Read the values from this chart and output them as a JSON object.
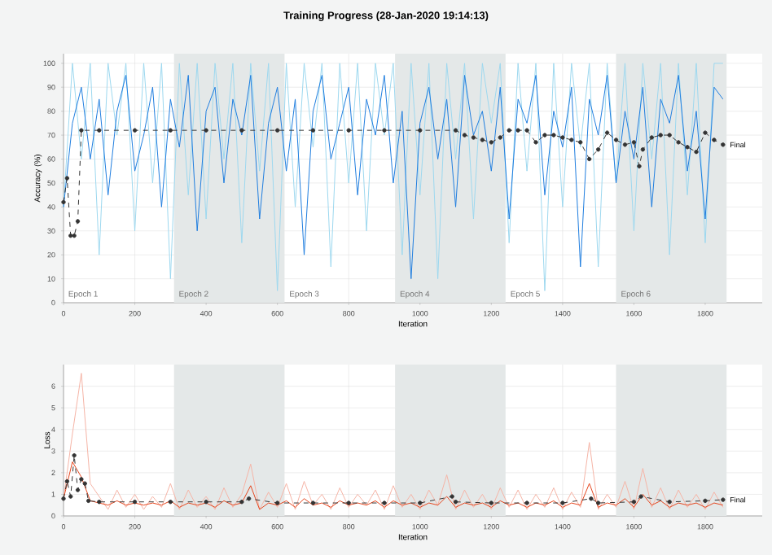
{
  "chart_data": [
    {
      "type": "line",
      "title": "Training Progress (28-Jan-2020 19:14:13)",
      "xlabel": "Iteration",
      "ylabel": "Accuracy (%)",
      "xlim": [
        0,
        1960
      ],
      "ylim": [
        0,
        104
      ],
      "xticks": [
        0,
        200,
        400,
        600,
        800,
        1000,
        1200,
        1400,
        1600,
        1800
      ],
      "yticks": [
        0,
        10,
        20,
        30,
        40,
        50,
        60,
        70,
        80,
        90,
        100
      ],
      "grid": true,
      "bands": [
        {
          "axis": "x",
          "from": 310,
          "to": 620,
          "color": "#e4e8e8"
        },
        {
          "axis": "x",
          "from": 930,
          "to": 1240,
          "color": "#e4e8e8"
        },
        {
          "axis": "x",
          "from": 1550,
          "to": 1860,
          "color": "#e4e8e8"
        }
      ],
      "annotations": [
        {
          "text": "Final",
          "x": 1850,
          "y": 66
        },
        "Epoch 1",
        "Epoch 2",
        "Epoch 3",
        "Epoch 4",
        "Epoch 5",
        "Epoch 6"
      ],
      "series": [
        {
          "color": "#9dd8ef",
          "x": [
            0,
            25,
            50,
            75,
            100,
            125,
            150,
            175,
            200,
            225,
            250,
            275,
            300,
            325,
            350,
            375,
            400,
            425,
            450,
            475,
            500,
            525,
            550,
            575,
            600,
            625,
            650,
            675,
            700,
            725,
            750,
            775,
            800,
            825,
            850,
            875,
            900,
            925,
            950,
            975,
            1000,
            1025,
            1050,
            1075,
            1100,
            1125,
            1150,
            1175,
            1200,
            1225,
            1250,
            1275,
            1300,
            1325,
            1350,
            1375,
            1400,
            1425,
            1450,
            1475,
            1500,
            1525,
            1550,
            1575,
            1600,
            1625,
            1650,
            1675,
            1700,
            1725,
            1750,
            1775,
            1800,
            1825,
            1850
          ],
          "values": [
            40,
            100,
            60,
            100,
            20,
            100,
            70,
            100,
            30,
            100,
            50,
            100,
            10,
            100,
            45,
            100,
            35,
            100,
            60,
            100,
            25,
            100,
            55,
            100,
            5,
            100,
            40,
            100,
            65,
            100,
            15,
            100,
            50,
            100,
            30,
            100,
            70,
            100,
            20,
            100,
            45,
            100,
            10,
            100,
            60,
            100,
            35,
            100,
            75,
            100,
            25,
            100,
            55,
            100,
            5,
            100,
            40,
            100,
            65,
            100,
            15,
            100,
            50,
            100,
            30,
            100,
            60,
            100,
            20,
            100,
            45,
            100,
            25,
            100,
            100
          ]
        },
        {
          "color": "#1f7ddf",
          "x": [
            0,
            25,
            50,
            75,
            100,
            125,
            150,
            175,
            200,
            225,
            250,
            275,
            300,
            325,
            350,
            375,
            400,
            425,
            450,
            475,
            500,
            525,
            550,
            575,
            600,
            625,
            650,
            675,
            700,
            725,
            750,
            775,
            800,
            825,
            850,
            875,
            900,
            925,
            950,
            975,
            1000,
            1025,
            1050,
            1075,
            1100,
            1125,
            1150,
            1175,
            1200,
            1225,
            1250,
            1275,
            1300,
            1325,
            1350,
            1375,
            1400,
            1425,
            1450,
            1475,
            1500,
            1525,
            1550,
            1575,
            1600,
            1625,
            1650,
            1675,
            1700,
            1725,
            1750,
            1775,
            1800,
            1825,
            1850
          ],
          "values": [
            40,
            75,
            90,
            60,
            85,
            45,
            80,
            95,
            55,
            70,
            90,
            40,
            85,
            65,
            95,
            30,
            80,
            90,
            50,
            85,
            70,
            95,
            35,
            75,
            90,
            55,
            85,
            20,
            80,
            95,
            60,
            75,
            90,
            45,
            85,
            70,
            95,
            50,
            80,
            10,
            75,
            90,
            60,
            85,
            40,
            95,
            70,
            80,
            55,
            90,
            35,
            85,
            75,
            95,
            45,
            80,
            65,
            90,
            15,
            85,
            70,
            95,
            50,
            80,
            60,
            90,
            40,
            85,
            75,
            95,
            55,
            80,
            35,
            90,
            85
          ]
        },
        {
          "color": "#333333",
          "marker": "circle",
          "line_style": "dashed",
          "x": [
            0,
            10,
            20,
            30,
            40,
            50,
            100,
            200,
            300,
            400,
            500,
            600,
            700,
            800,
            900,
            1000,
            1100,
            1125,
            1150,
            1175,
            1200,
            1225,
            1250,
            1275,
            1300,
            1325,
            1350,
            1375,
            1400,
            1425,
            1450,
            1475,
            1500,
            1525,
            1550,
            1575,
            1600,
            1615,
            1625,
            1650,
            1675,
            1700,
            1725,
            1750,
            1775,
            1800,
            1825,
            1850
          ],
          "values": [
            42,
            52,
            28,
            28,
            34,
            72,
            72,
            72,
            72,
            72,
            72,
            72,
            72,
            72,
            72,
            72,
            72,
            70,
            69,
            68,
            67,
            69,
            72,
            72,
            72,
            67,
            70,
            70,
            69,
            68,
            67,
            60,
            64,
            71,
            68,
            66,
            67,
            57,
            64,
            69,
            70,
            70,
            67,
            65,
            63,
            71,
            68,
            66
          ]
        }
      ]
    },
    {
      "type": "line",
      "xlabel": "Iteration",
      "ylabel": "Loss",
      "xlim": [
        0,
        1960
      ],
      "ylim": [
        0,
        7
      ],
      "xticks": [
        0,
        200,
        400,
        600,
        800,
        1000,
        1200,
        1400,
        1600,
        1800
      ],
      "yticks": [
        0,
        1,
        2,
        3,
        4,
        5,
        6
      ],
      "grid": true,
      "bands": [
        {
          "axis": "x",
          "from": 310,
          "to": 620,
          "color": "#e4e8e8"
        },
        {
          "axis": "x",
          "from": 930,
          "to": 1240,
          "color": "#e4e8e8"
        },
        {
          "axis": "x",
          "from": 1550,
          "to": 1860,
          "color": "#e4e8e8"
        }
      ],
      "annotations": [
        {
          "text": "Final",
          "x": 1850,
          "y": 0.75
        }
      ],
      "series": [
        {
          "color": "#f5b4a6",
          "x": [
            0,
            25,
            50,
            75,
            100,
            125,
            150,
            175,
            200,
            225,
            250,
            275,
            300,
            325,
            350,
            375,
            400,
            425,
            450,
            475,
            500,
            525,
            550,
            575,
            600,
            625,
            650,
            675,
            700,
            725,
            750,
            775,
            800,
            825,
            850,
            875,
            900,
            925,
            950,
            975,
            1000,
            1025,
            1050,
            1075,
            1100,
            1125,
            1150,
            1175,
            1200,
            1225,
            1250,
            1275,
            1300,
            1325,
            1350,
            1375,
            1400,
            1425,
            1450,
            1475,
            1500,
            1525,
            1550,
            1575,
            1600,
            1625,
            1650,
            1675,
            1700,
            1725,
            1750,
            1775,
            1800,
            1825,
            1850
          ],
          "values": [
            0.8,
            3.8,
            6.6,
            1.5,
            0.9,
            0.3,
            1.2,
            0.4,
            1.0,
            0.3,
            0.9,
            0.4,
            1.5,
            0.3,
            1.2,
            0.4,
            0.9,
            0.3,
            1.3,
            0.4,
            1.0,
            2.4,
            0.3,
            1.1,
            0.4,
            1.5,
            0.3,
            1.6,
            0.5,
            1.0,
            0.3,
            1.3,
            0.4,
            1.0,
            0.5,
            1.2,
            0.3,
            1.4,
            0.4,
            1.0,
            0.3,
            1.2,
            0.5,
            1.9,
            0.3,
            1.2,
            0.4,
            1.0,
            0.3,
            1.3,
            0.4,
            1.2,
            0.3,
            1.0,
            0.4,
            1.3,
            0.3,
            1.1,
            0.4,
            3.4,
            0.3,
            1.0,
            0.4,
            1.6,
            0.3,
            2.2,
            0.4,
            1.3,
            0.3,
            1.2,
            0.4,
            1.0,
            0.3,
            1.1,
            0.4
          ]
        },
        {
          "color": "#e5451d",
          "x": [
            0,
            25,
            50,
            75,
            100,
            125,
            150,
            175,
            200,
            225,
            250,
            275,
            300,
            325,
            350,
            375,
            400,
            425,
            450,
            475,
            500,
            525,
            550,
            575,
            600,
            625,
            650,
            675,
            700,
            725,
            750,
            775,
            800,
            825,
            850,
            875,
            900,
            925,
            950,
            975,
            1000,
            1025,
            1050,
            1075,
            1100,
            1125,
            1150,
            1175,
            1200,
            1225,
            1250,
            1275,
            1300,
            1325,
            1350,
            1375,
            1400,
            1425,
            1450,
            1475,
            1500,
            1525,
            1550,
            1575,
            1600,
            1625,
            1650,
            1675,
            1700,
            1725,
            1750,
            1775,
            1800,
            1825,
            1850
          ],
          "values": [
            0.8,
            2.5,
            1.8,
            0.7,
            0.6,
            0.5,
            0.7,
            0.5,
            0.6,
            0.5,
            0.6,
            0.5,
            0.7,
            0.4,
            0.6,
            0.5,
            0.6,
            0.4,
            0.7,
            0.5,
            0.6,
            1.4,
            0.3,
            0.6,
            0.5,
            0.7,
            0.4,
            0.8,
            0.5,
            0.6,
            0.4,
            0.7,
            0.5,
            0.6,
            0.5,
            0.7,
            0.4,
            0.7,
            0.5,
            0.6,
            0.4,
            0.6,
            0.5,
            0.9,
            0.4,
            0.6,
            0.5,
            0.6,
            0.4,
            0.7,
            0.5,
            0.6,
            0.4,
            0.6,
            0.5,
            0.7,
            0.4,
            0.6,
            0.5,
            1.5,
            0.4,
            0.6,
            0.5,
            0.8,
            0.4,
            1.0,
            0.5,
            0.7,
            0.4,
            0.6,
            0.5,
            0.6,
            0.4,
            0.6,
            0.5
          ]
        },
        {
          "color": "#333333",
          "marker": "circle",
          "line_style": "dashed",
          "x": [
            0,
            10,
            20,
            30,
            40,
            50,
            60,
            70,
            100,
            200,
            300,
            400,
            500,
            520,
            600,
            700,
            800,
            900,
            1000,
            1090,
            1100,
            1200,
            1300,
            1400,
            1480,
            1500,
            1600,
            1620,
            1700,
            1800,
            1850
          ],
          "values": [
            0.8,
            1.6,
            0.9,
            2.8,
            1.2,
            1.7,
            1.5,
            0.7,
            0.65,
            0.65,
            0.65,
            0.65,
            0.65,
            0.8,
            0.6,
            0.6,
            0.6,
            0.6,
            0.6,
            0.9,
            0.65,
            0.6,
            0.6,
            0.6,
            0.8,
            0.6,
            0.65,
            0.9,
            0.65,
            0.7,
            0.75
          ]
        }
      ]
    }
  ]
}
